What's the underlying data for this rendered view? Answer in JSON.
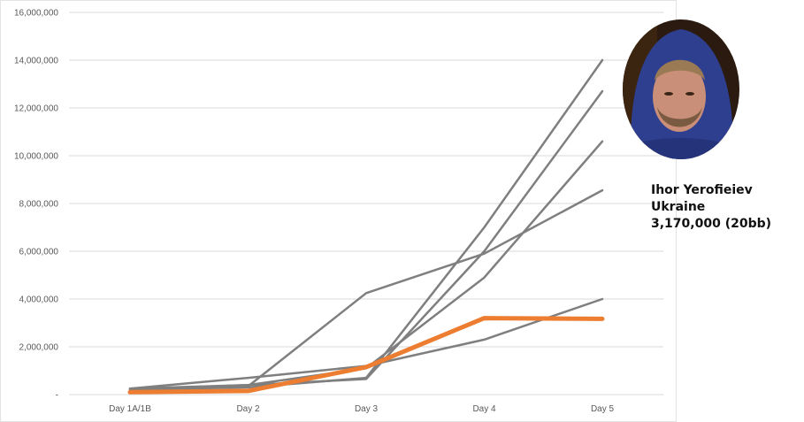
{
  "chart_data": {
    "type": "line",
    "categories": [
      "Day 1A/1B",
      "Day 2",
      "Day 3",
      "Day 4",
      "Day 5"
    ],
    "y_ticks": [
      "-",
      "2,000,000",
      "4,000,000",
      "6,000,000",
      "8,000,000",
      "10,000,000",
      "12,000,000",
      "14,000,000",
      "16,000,000"
    ],
    "ylim": [
      0,
      16000000
    ],
    "grid": true,
    "series": [
      {
        "values": [
          200000,
          300000,
          700000,
          7000000,
          14000000
        ],
        "color": "#7f7f7f"
      },
      {
        "values": [
          200000,
          400000,
          650000,
          6000000,
          12700000
        ],
        "color": "#7f7f7f"
      },
      {
        "values": [
          250000,
          400000,
          1100000,
          4900000,
          10600000
        ],
        "color": "#7f7f7f"
      },
      {
        "values": [
          250000,
          350000,
          4250000,
          5900000,
          8550000
        ],
        "color": "#7f7f7f"
      },
      {
        "values": [
          250000,
          700000,
          1200000,
          2300000,
          4000000
        ],
        "color": "#7f7f7f"
      },
      {
        "values": [
          100000,
          150000,
          1150000,
          3200000,
          3170000
        ],
        "color": "#ed7d31",
        "highlight": true
      }
    ]
  },
  "player": {
    "name": "Ihor Yerofieiev",
    "country": "Ukraine",
    "stack": "3,170,000 (20bb)"
  }
}
